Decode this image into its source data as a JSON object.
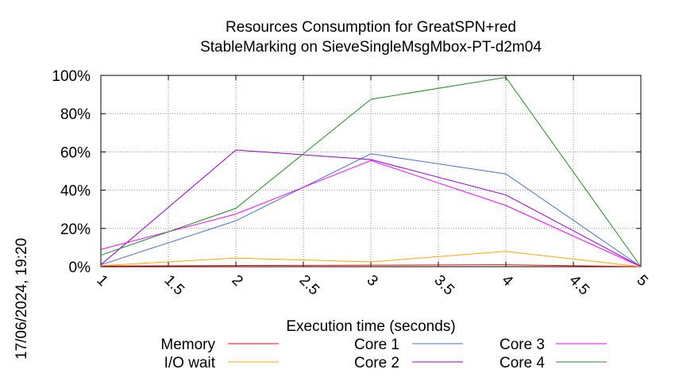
{
  "chart_data": {
    "type": "line",
    "title": [
      "Resources Consumption for GreatSPN+red",
      "StableMarking on SieveSingleMsgMbox-PT-d2m04"
    ],
    "xlabel": "Execution time (seconds)",
    "ylabel": "",
    "timestamp": "17/06/2024, 19:20",
    "xlim": [
      1,
      5
    ],
    "ylim": [
      0,
      100
    ],
    "x_ticks": [
      "1",
      "1.5",
      "2",
      "2.5",
      "3",
      "3.5",
      "4",
      "4.5",
      "5"
    ],
    "y_ticks": [
      "0%",
      "20%",
      "40%",
      "60%",
      "80%",
      "100%"
    ],
    "grid": true,
    "legend_position": "bottom",
    "x": [
      1,
      2,
      3,
      4,
      5
    ],
    "series": [
      {
        "name": "Memory",
        "color": "#ff0000",
        "values": [
          0.3,
          0.6,
          0.8,
          1.0,
          0
        ]
      },
      {
        "name": "I/O wait",
        "color": "#ffa500",
        "values": [
          0.5,
          4.5,
          2.5,
          8.0,
          0
        ]
      },
      {
        "name": "Core 1",
        "color": "#4472c4",
        "values": [
          1.0,
          24.0,
          59.0,
          48.5,
          0
        ]
      },
      {
        "name": "Core 2",
        "color": "#9400d3",
        "values": [
          1.0,
          61.0,
          56.0,
          37.5,
          0
        ]
      },
      {
        "name": "Core 3",
        "color": "#ff00ff",
        "values": [
          9.0,
          27.5,
          55.5,
          32.0,
          0
        ]
      },
      {
        "name": "Core 4",
        "color": "#228b22",
        "values": [
          6.0,
          30.5,
          87.5,
          99.0,
          0
        ]
      }
    ]
  }
}
